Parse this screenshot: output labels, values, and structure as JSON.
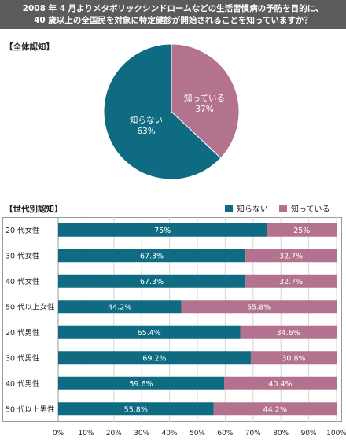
{
  "header": {
    "line1": "2008 年 4 月よりメタボリックシンドロームなどの生活習慣病の予防を目的に、",
    "line2": "40 歳以上の全国民を対象に特定健診が開始されることを知っていますか？"
  },
  "colors": {
    "teal": "#0e6b82",
    "mauve": "#b3738f",
    "grid": "#d6d6d6"
  },
  "chart_data": [
    {
      "type": "pie",
      "title": "【全体認知】",
      "slices": [
        {
          "name": "知らない",
          "value": 63,
          "label": "63%"
        },
        {
          "name": "知っている",
          "value": 37,
          "label": "37%"
        }
      ]
    },
    {
      "type": "bar",
      "orientation": "horizontal",
      "stacked": true,
      "title": "【世代別認知】",
      "categories": [
        "20 代女性",
        "30 代女性",
        "40 代女性",
        "50 代以上女性",
        "20 代男性",
        "30 代男性",
        "40 代男性",
        "50 代以上男性"
      ],
      "series": [
        {
          "name": "知らない",
          "values": [
            75,
            67.3,
            67.3,
            44.2,
            65.4,
            69.2,
            59.6,
            55.8
          ],
          "labels": [
            "75%",
            "67.3%",
            "67.3%",
            "44.2%",
            "65.4%",
            "69.2%",
            "59.6%",
            "55.8%"
          ]
        },
        {
          "name": "知っている",
          "values": [
            25,
            32.7,
            32.7,
            55.8,
            34.6,
            30.8,
            40.4,
            44.2
          ],
          "labels": [
            "25%",
            "32.7%",
            "32.7%",
            "55.8%",
            "34.6%",
            "30.8%",
            "40.4%",
            "44.2%"
          ]
        }
      ],
      "xlim": [
        0,
        100
      ],
      "xticks": [
        "0%",
        "10%",
        "20%",
        "30%",
        "40%",
        "50%",
        "60%",
        "70%",
        "80%",
        "90%",
        "100%"
      ],
      "legend": "top-right",
      "grid": true
    }
  ]
}
